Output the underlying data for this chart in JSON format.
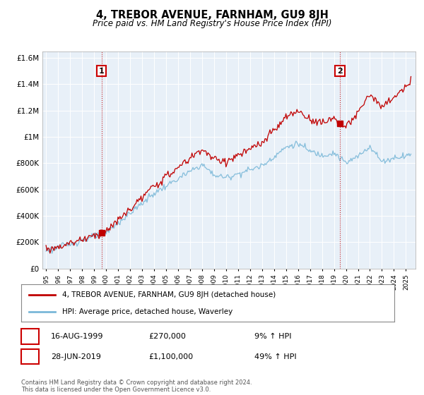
{
  "title": "4, TREBOR AVENUE, FARNHAM, GU9 8JH",
  "subtitle": "Price paid vs. HM Land Registry's House Price Index (HPI)",
  "legend_line1": "4, TREBOR AVENUE, FARNHAM, GU9 8JH (detached house)",
  "legend_line2": "HPI: Average price, detached house, Waverley",
  "transaction1_date": "16-AUG-1999",
  "transaction1_price": "£270,000",
  "transaction1_hpi": "9% ↑ HPI",
  "transaction1_year": 1999.62,
  "transaction1_value": 270000,
  "transaction2_date": "28-JUN-2019",
  "transaction2_price": "£1,100,000",
  "transaction2_hpi": "49% ↑ HPI",
  "transaction2_year": 2019.49,
  "transaction2_value": 1100000,
  "hpi_color": "#7ab8d8",
  "price_color": "#c00000",
  "vline_color": "#c00000",
  "dot_color": "#c00000",
  "ylim_min": 0,
  "ylim_max": 1650000,
  "yticks": [
    0,
    200000,
    400000,
    600000,
    800000,
    1000000,
    1200000,
    1400000,
    1600000
  ],
  "ytick_labels": [
    "£0",
    "£200K",
    "£400K",
    "£600K",
    "£800K",
    "£1M",
    "£1.2M",
    "£1.4M",
    "£1.6M"
  ],
  "xmin": 1994.7,
  "xmax": 2025.8,
  "background_color": "#ffffff",
  "plot_bg_color": "#e8f0f8",
  "grid_color": "#ffffff",
  "footnote": "Contains HM Land Registry data © Crown copyright and database right 2024.\nThis data is licensed under the Open Government Licence v3.0."
}
